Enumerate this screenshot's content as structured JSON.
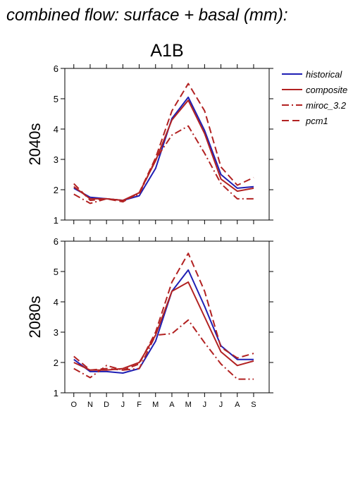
{
  "figure": {
    "title": "combined flow: surface + basal (mm):",
    "scenario": "A1B"
  },
  "legend": [
    {
      "name": "historical",
      "color": "#1f1fb4",
      "dash": "solid"
    },
    {
      "name": "composite",
      "color": "#b22222",
      "dash": "solid"
    },
    {
      "name": "miroc_3.2",
      "color": "#b22222",
      "dash": "dashdot"
    },
    {
      "name": "pcm1",
      "color": "#b22222",
      "dash": "dashed"
    }
  ],
  "chart_data": [
    {
      "type": "line",
      "ylabel": "2040s",
      "categories": [
        "O",
        "N",
        "D",
        "J",
        "F",
        "M",
        "A",
        "M",
        "J",
        "J",
        "A",
        "S"
      ],
      "ylim": [
        1,
        6
      ],
      "yticks": [
        1,
        2,
        3,
        4,
        5,
        6
      ],
      "series": [
        {
          "name": "historical",
          "values": [
            2.05,
            1.75,
            1.7,
            1.65,
            1.8,
            2.7,
            4.35,
            5.05,
            3.95,
            2.5,
            2.05,
            2.1
          ]
        },
        {
          "name": "composite",
          "values": [
            2.1,
            1.7,
            1.7,
            1.65,
            1.9,
            2.95,
            4.3,
            4.95,
            3.85,
            2.35,
            1.95,
            2.05
          ]
        },
        {
          "name": "miroc_3.2",
          "values": [
            1.85,
            1.55,
            1.7,
            1.65,
            1.85,
            3.0,
            3.8,
            4.1,
            3.2,
            2.2,
            1.7,
            1.7
          ]
        },
        {
          "name": "pcm1",
          "values": [
            2.2,
            1.65,
            1.7,
            1.6,
            1.9,
            3.05,
            4.6,
            5.5,
            4.6,
            2.75,
            2.15,
            2.4
          ]
        }
      ]
    },
    {
      "type": "line",
      "ylabel": "2080s",
      "categories": [
        "O",
        "N",
        "D",
        "J",
        "F",
        "M",
        "A",
        "M",
        "J",
        "J",
        "A",
        "S"
      ],
      "ylim": [
        1,
        6
      ],
      "yticks": [
        1,
        2,
        3,
        4,
        5,
        6
      ],
      "series": [
        {
          "name": "historical",
          "values": [
            2.1,
            1.7,
            1.7,
            1.65,
            1.8,
            2.7,
            4.35,
            5.05,
            3.85,
            2.55,
            2.1,
            2.1
          ]
        },
        {
          "name": "composite",
          "values": [
            2.0,
            1.75,
            1.75,
            1.8,
            2.0,
            2.9,
            4.35,
            4.65,
            3.5,
            2.35,
            1.9,
            2.05
          ]
        },
        {
          "name": "miroc_3.2",
          "values": [
            1.8,
            1.5,
            1.9,
            1.75,
            1.8,
            2.9,
            2.95,
            3.4,
            2.65,
            1.95,
            1.45,
            1.45
          ]
        },
        {
          "name": "pcm1",
          "values": [
            2.2,
            1.75,
            1.8,
            1.75,
            1.95,
            3.0,
            4.65,
            5.6,
            4.35,
            2.5,
            2.15,
            2.3
          ]
        }
      ]
    }
  ]
}
